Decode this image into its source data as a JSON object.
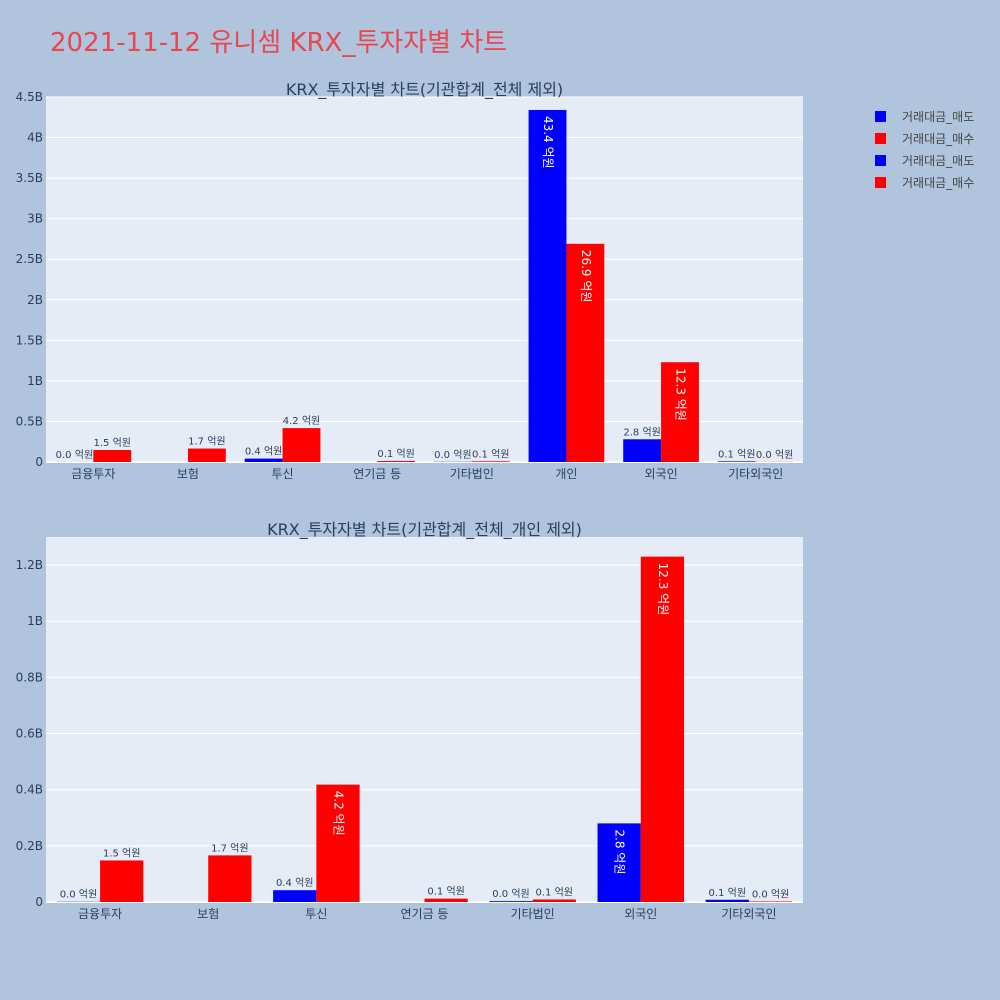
{
  "title": "2021-11-12 유니셈 KRX_투자자별 차트",
  "legend": [
    {
      "label": "거래대금_매도",
      "color": "#0000ff"
    },
    {
      "label": "거래대금_매수",
      "color": "#ff0000"
    },
    {
      "label": "거래대금_매도",
      "color": "#0000ff"
    },
    {
      "label": "거래대금_매수",
      "color": "#ff0000"
    }
  ],
  "chart_data": [
    {
      "type": "bar",
      "title": "KRX_투자자별 차트(기관합계_전체 제외)",
      "categories": [
        "금융투자",
        "보험",
        "투신",
        "연기금 등",
        "기타법인",
        "개인",
        "외국인",
        "기타외국인"
      ],
      "series": [
        {
          "name": "거래대금_매도",
          "color": "#0000ff",
          "values": [
            1000000,
            0,
            42000000,
            0,
            3000000,
            4340000000,
            280000000,
            8000000
          ],
          "labels": [
            "0.0 억원",
            "",
            "0.4 억원",
            "",
            "0.0 억원",
            "43.4 억원",
            "2.8 억원",
            "0.1 억원"
          ]
        },
        {
          "name": "거래대금_매수",
          "color": "#ff0000",
          "values": [
            148000000,
            166000000,
            418000000,
            12000000,
            9000000,
            2690000000,
            1230000000,
            2000000
          ],
          "labels": [
            "1.5 억원",
            "1.7 억원",
            "4.2 억원",
            "0.1 억원",
            "0.1 억원",
            "26.9 억원",
            "12.3 억원",
            "0.0 억원"
          ]
        }
      ],
      "ylim": [
        0,
        4500000000
      ],
      "yticks": [
        0,
        500000000,
        1000000000,
        1500000000,
        2000000000,
        2500000000,
        3000000000,
        3500000000,
        4000000000,
        4500000000
      ],
      "ytick_labels": [
        "0",
        "0.5B",
        "1B",
        "1.5B",
        "2B",
        "2.5B",
        "3B",
        "3.5B",
        "4B",
        "4.5B"
      ],
      "grid": true
    },
    {
      "type": "bar",
      "title": "KRX_투자자별 차트(기관합계_전체_개인 제외)",
      "categories": [
        "금융투자",
        "보험",
        "투신",
        "연기금 등",
        "기타법인",
        "외국인",
        "기타외국인"
      ],
      "series": [
        {
          "name": "거래대금_매도",
          "color": "#0000ff",
          "values": [
            1000000,
            0,
            42000000,
            0,
            3000000,
            280000000,
            8000000
          ],
          "labels": [
            "0.0 억원",
            "",
            "0.4 억원",
            "",
            "0.0 억원",
            "2.8 억원",
            "0.1 억원"
          ]
        },
        {
          "name": "거래대금_매수",
          "color": "#ff0000",
          "values": [
            148000000,
            166000000,
            418000000,
            12000000,
            9000000,
            1230000000,
            2000000
          ],
          "labels": [
            "1.5 억원",
            "1.7 억원",
            "4.2 억원",
            "0.1 억원",
            "0.1 억원",
            "12.3 억원",
            "0.0 억원"
          ]
        }
      ],
      "ylim": [
        0,
        1300000000
      ],
      "yticks": [
        0,
        200000000,
        400000000,
        600000000,
        800000000,
        1000000000,
        1200000000
      ],
      "ytick_labels": [
        "0",
        "0.2B",
        "0.4B",
        "0.6B",
        "0.8B",
        "1B",
        "1.2B"
      ],
      "grid": true
    }
  ]
}
